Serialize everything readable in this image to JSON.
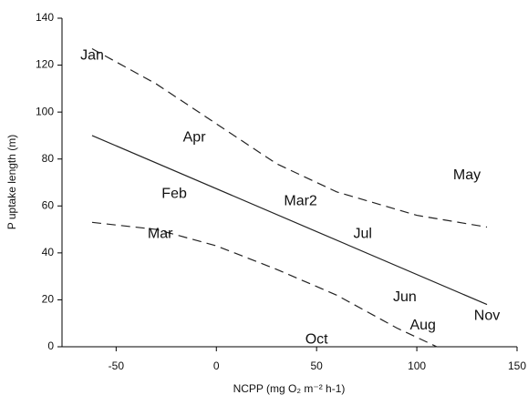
{
  "chart_data": {
    "type": "scatter",
    "x_label": "NCPP (mg O₂ m⁻² h-1)",
    "y_label": "P uptake length (m)",
    "xlim": [
      -77,
      150
    ],
    "xticks": [
      -50,
      0,
      50,
      100,
      150
    ],
    "ylim": [
      0,
      140
    ],
    "yticks": [
      0,
      20,
      40,
      60,
      80,
      100,
      120,
      140
    ],
    "points": [
      {
        "label": "Jan",
        "x": -62,
        "y": 124
      },
      {
        "label": "Apr",
        "x": -11,
        "y": 89
      },
      {
        "label": "Feb",
        "x": -21,
        "y": 65
      },
      {
        "label": "Mar",
        "x": -28,
        "y": 48
      },
      {
        "label": "Mar2",
        "x": 42,
        "y": 62
      },
      {
        "label": "Jul",
        "x": 73,
        "y": 48
      },
      {
        "label": "May",
        "x": 125,
        "y": 73
      },
      {
        "label": "Jun",
        "x": 94,
        "y": 21
      },
      {
        "label": "Aug",
        "x": 103,
        "y": 9
      },
      {
        "label": "Nov",
        "x": 135,
        "y": 13
      },
      {
        "label": "Oct",
        "x": 50,
        "y": 3
      }
    ],
    "fit_line": {
      "x": [
        -62,
        135
      ],
      "y": [
        90,
        18
      ]
    },
    "upper_band": {
      "x": [
        -62,
        -30,
        0,
        30,
        60,
        100,
        135
      ],
      "y": [
        127,
        112,
        95,
        78,
        66,
        56,
        51
      ]
    },
    "lower_band": {
      "x": [
        -62,
        -30,
        0,
        30,
        60,
        90,
        110
      ],
      "y": [
        53,
        50,
        43,
        33,
        22,
        8,
        0
      ]
    }
  }
}
